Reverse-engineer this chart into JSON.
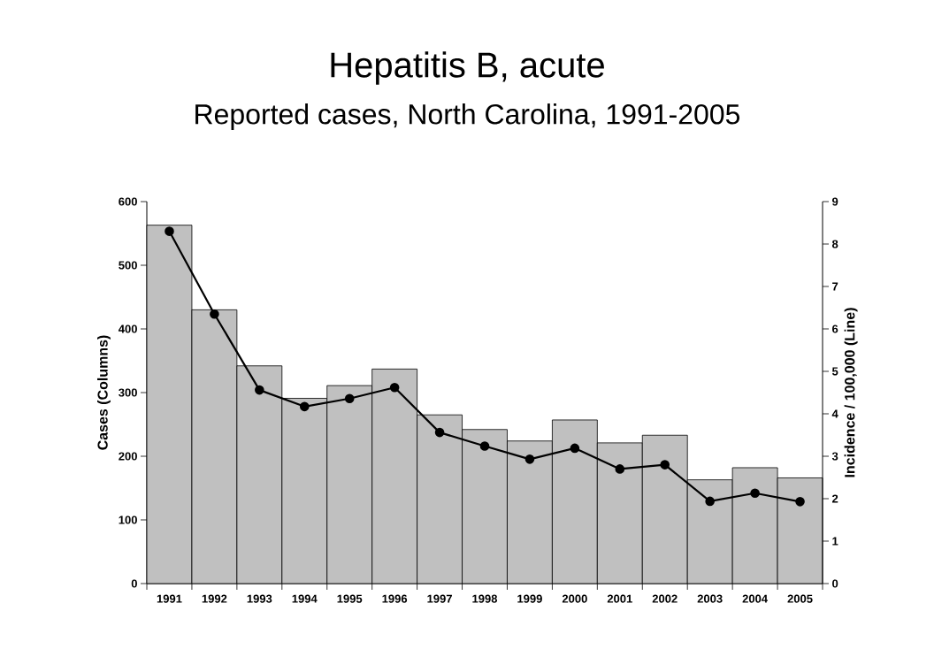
{
  "chart_data": {
    "type": "bar",
    "title": "Hepatitis B, acute",
    "subtitle": "Reported cases, North Carolina, 1991-2005",
    "ylabel": "Cases (Columns)",
    "y2label": "Incidence / 100,000 (Line)",
    "categories": [
      "1991",
      "1992",
      "1993",
      "1994",
      "1995",
      "1996",
      "1997",
      "1998",
      "1999",
      "2000",
      "2001",
      "2002",
      "2003",
      "2004",
      "2005"
    ],
    "series": [
      {
        "color": "#c0c0c0",
        "values": [
          563,
          430,
          342,
          291,
          311,
          337,
          265,
          242,
          224,
          257,
          221,
          233,
          163,
          182,
          166
        ]
      },
      {
        "type": "line",
        "axis": "y2",
        "color": "#000000",
        "values": [
          8.3,
          6.35,
          4.56,
          4.17,
          4.36,
          4.62,
          3.56,
          3.24,
          2.93,
          3.19,
          2.7,
          2.8,
          1.94,
          2.13,
          1.93
        ]
      }
    ],
    "ylim": [
      0,
      600
    ],
    "yticks": [
      0,
      100,
      200,
      300,
      400,
      500,
      600
    ],
    "y2lim": [
      0,
      9
    ],
    "y2ticks": [
      0,
      1,
      2,
      3,
      4,
      5,
      6,
      7,
      8,
      9
    ],
    "marker": "circle",
    "line_style": "solid",
    "grid": false
  }
}
